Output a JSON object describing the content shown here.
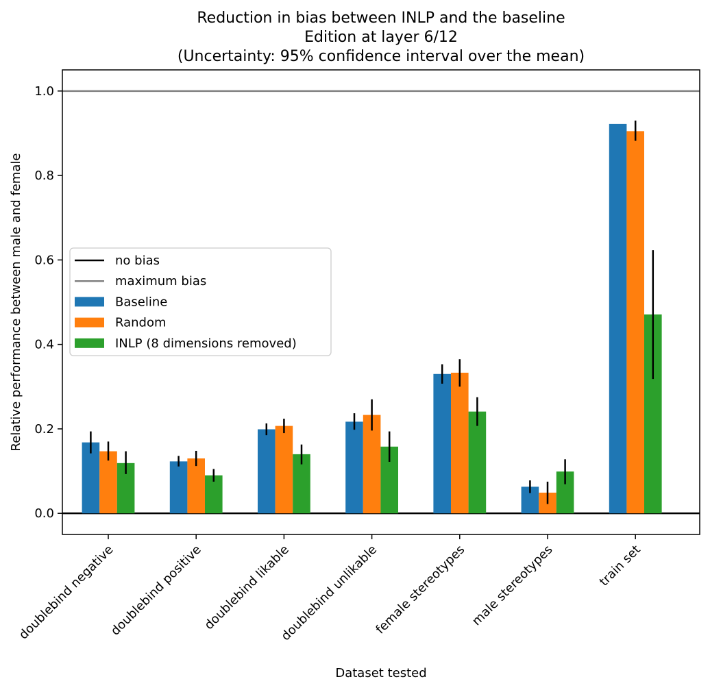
{
  "chart_data": {
    "type": "bar",
    "title_lines": [
      "Reduction in bias between INLP and the baseline",
      "Edition at layer 6/12",
      "(Uncertainty: 95% confidence interval over the mean)"
    ],
    "xlabel": "Dataset tested",
    "ylabel": "Relative performance between male and female",
    "ylim": [
      -0.05,
      1.05
    ],
    "yticks": [
      "0.0",
      "0.2",
      "0.4",
      "0.6",
      "0.8",
      "1.0"
    ],
    "categories": [
      "doublebind negative",
      "doublebind positive",
      "doublebind likable",
      "doublebind unlikable",
      "female stereotypes",
      "male stereotypes",
      "train set"
    ],
    "series": [
      {
        "name": "Baseline",
        "color": "#1f77b4",
        "values": [
          0.168,
          0.123,
          0.199,
          0.217,
          0.33,
          0.063,
          0.922
        ],
        "ci_low": [
          0.142,
          0.111,
          0.185,
          0.198,
          0.307,
          0.048,
          0.922
        ],
        "ci_high": [
          0.194,
          0.136,
          0.213,
          0.237,
          0.353,
          0.078,
          0.922
        ]
      },
      {
        "name": "Random",
        "color": "#ff7f0e",
        "values": [
          0.147,
          0.13,
          0.207,
          0.233,
          0.333,
          0.049,
          0.905
        ],
        "ci_low": [
          0.125,
          0.112,
          0.19,
          0.196,
          0.3,
          0.022,
          0.882
        ],
        "ci_high": [
          0.17,
          0.148,
          0.224,
          0.27,
          0.365,
          0.075,
          0.93
        ]
      },
      {
        "name": "INLP (8 dimensions removed)",
        "color": "#2ca02c",
        "values": [
          0.119,
          0.09,
          0.14,
          0.158,
          0.241,
          0.099,
          0.471
        ],
        "ci_low": [
          0.093,
          0.075,
          0.116,
          0.122,
          0.207,
          0.069,
          0.318
        ],
        "ci_high": [
          0.147,
          0.105,
          0.163,
          0.194,
          0.275,
          0.128,
          0.623
        ]
      }
    ],
    "reference_lines": [
      {
        "name": "no bias",
        "y": 0.0,
        "color": "#000000"
      },
      {
        "name": "maximum bias",
        "y": 1.0,
        "color": "#808080"
      }
    ],
    "legend": {
      "placement": "center-left",
      "entries": [
        {
          "label": "no bias",
          "kind": "line",
          "color": "#000000"
        },
        {
          "label": "maximum bias",
          "kind": "line",
          "color": "#808080"
        },
        {
          "label": "Baseline",
          "kind": "patch",
          "color": "#1f77b4"
        },
        {
          "label": "Random",
          "kind": "patch",
          "color": "#ff7f0e"
        },
        {
          "label": "INLP (8 dimensions removed)",
          "kind": "patch",
          "color": "#2ca02c"
        }
      ]
    },
    "grid": false
  }
}
